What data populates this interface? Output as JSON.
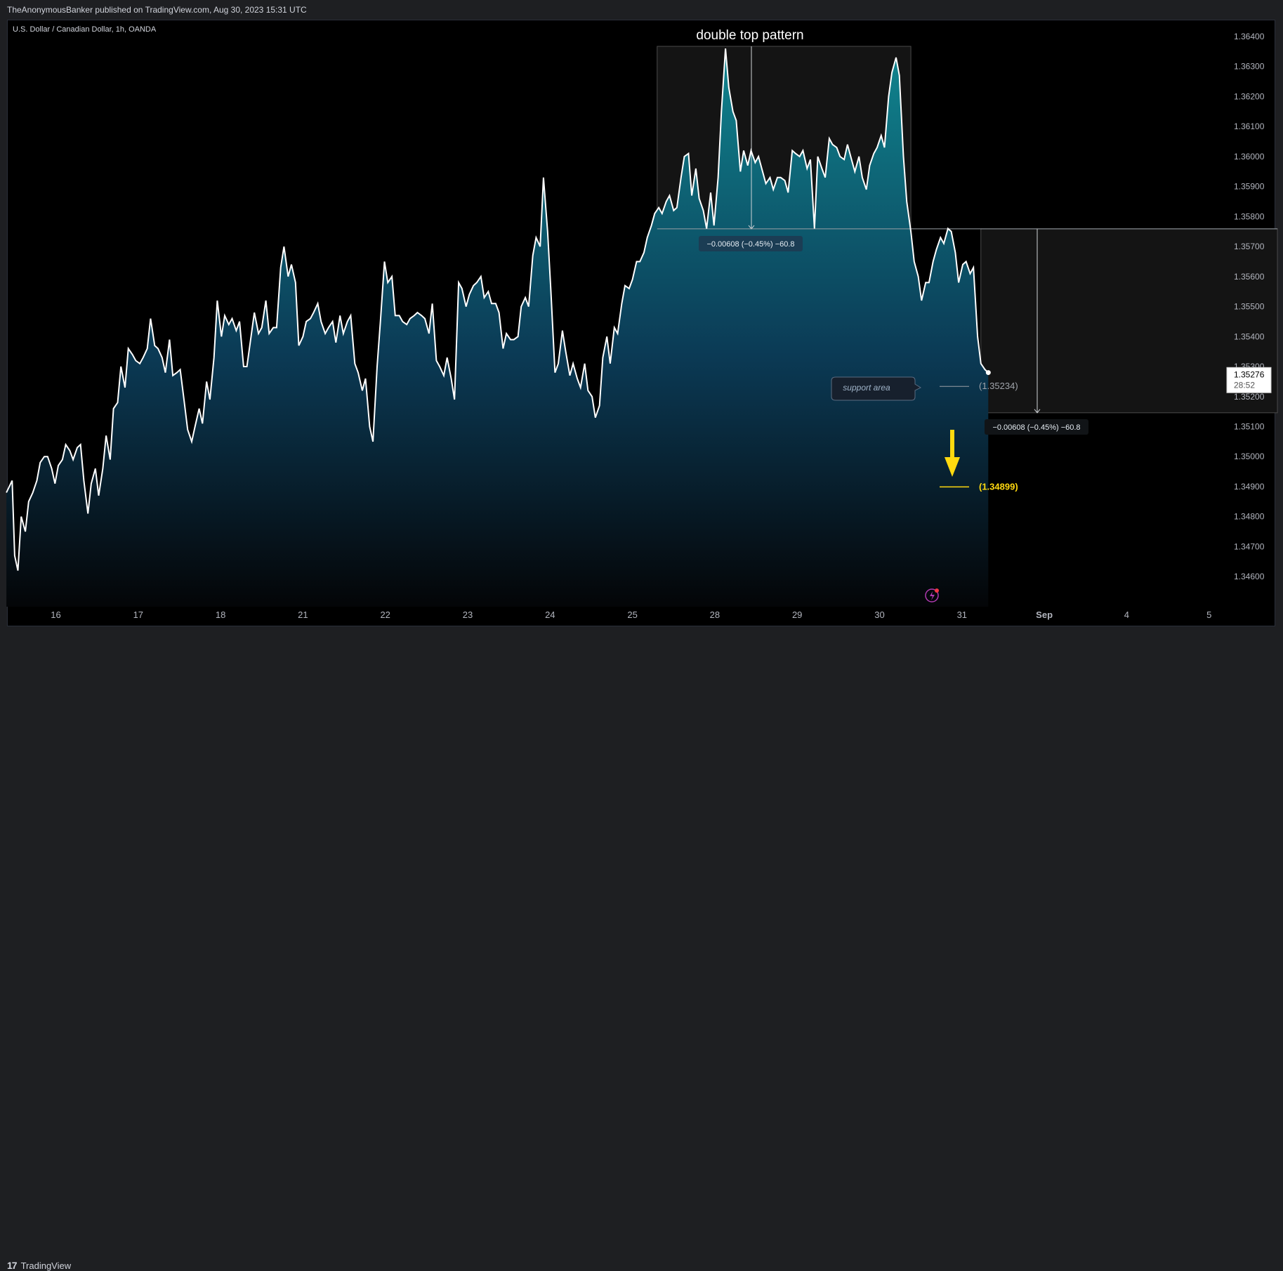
{
  "header": {
    "published": "TheAnonymousBanker published on TradingView.com, Aug 30, 2023 15:31 UTC"
  },
  "footer": {
    "brand": "TradingView"
  },
  "chart_data": {
    "type": "area",
    "symbol_label": "U.S. Dollar / Canadian Dollar, 1h, OANDA",
    "title": "double top pattern",
    "ylim": [
      1.3455,
      1.3645
    ],
    "y_ticks": [
      "1.36400",
      "1.36300",
      "1.36200",
      "1.36100",
      "1.36000",
      "1.35900",
      "1.35800",
      "1.35700",
      "1.35600",
      "1.35500",
      "1.35400",
      "1.35200",
      "1.35100",
      "1.35000",
      "1.34900",
      "1.34800",
      "1.34700",
      "1.34600"
    ],
    "x_ticks": [
      {
        "label": "16",
        "pos": 1
      },
      {
        "label": "17",
        "pos": 2
      },
      {
        "label": "18",
        "pos": 3
      },
      {
        "label": "21",
        "pos": 4
      },
      {
        "label": "22",
        "pos": 5
      },
      {
        "label": "23",
        "pos": 6
      },
      {
        "label": "24",
        "pos": 7
      },
      {
        "label": "25",
        "pos": 8
      },
      {
        "label": "28",
        "pos": 9
      },
      {
        "label": "29",
        "pos": 10
      },
      {
        "label": "30",
        "pos": 11
      },
      {
        "label": "31",
        "pos": 12
      },
      {
        "label": "Sep",
        "pos": 13
      },
      {
        "label": "4",
        "pos": 14
      },
      {
        "label": "5",
        "pos": 15
      }
    ],
    "series": [
      {
        "points": [
          [
            0.4,
            1.3488
          ],
          [
            0.47,
            1.3492
          ],
          [
            0.5,
            1.3467
          ],
          [
            0.54,
            1.3462
          ],
          [
            0.58,
            1.348
          ],
          [
            0.63,
            1.3475
          ],
          [
            0.67,
            1.3485
          ],
          [
            0.72,
            1.3488
          ],
          [
            0.77,
            1.3492
          ],
          [
            0.81,
            1.3498
          ],
          [
            0.86,
            1.35
          ],
          [
            0.9,
            1.35
          ],
          [
            0.95,
            1.3496
          ],
          [
            0.99,
            1.3491
          ],
          [
            1.03,
            1.3497
          ],
          [
            1.08,
            1.3499
          ],
          [
            1.12,
            1.3504
          ],
          [
            1.17,
            1.3502
          ],
          [
            1.21,
            1.3499
          ],
          [
            1.26,
            1.3503
          ],
          [
            1.3,
            1.3504
          ],
          [
            1.34,
            1.3492
          ],
          [
            1.39,
            1.3481
          ],
          [
            1.43,
            1.3491
          ],
          [
            1.48,
            1.3496
          ],
          [
            1.52,
            1.3487
          ],
          [
            1.57,
            1.3496
          ],
          [
            1.61,
            1.3507
          ],
          [
            1.66,
            1.3499
          ],
          [
            1.7,
            1.3516
          ],
          [
            1.75,
            1.3518
          ],
          [
            1.79,
            1.353
          ],
          [
            1.84,
            1.3523
          ],
          [
            1.88,
            1.3536
          ],
          [
            1.93,
            1.3534
          ],
          [
            1.97,
            1.3532
          ],
          [
            2.02,
            1.3531
          ],
          [
            2.06,
            1.3533
          ],
          [
            2.11,
            1.3536
          ],
          [
            2.15,
            1.3546
          ],
          [
            2.2,
            1.3537
          ],
          [
            2.24,
            1.3536
          ],
          [
            2.29,
            1.3533
          ],
          [
            2.33,
            1.3528
          ],
          [
            2.38,
            1.3539
          ],
          [
            2.42,
            1.3527
          ],
          [
            2.47,
            1.3528
          ],
          [
            2.51,
            1.3529
          ],
          [
            2.56,
            1.3518
          ],
          [
            2.6,
            1.3509
          ],
          [
            2.65,
            1.3505
          ],
          [
            2.69,
            1.351
          ],
          [
            2.74,
            1.3516
          ],
          [
            2.78,
            1.3511
          ],
          [
            2.83,
            1.3525
          ],
          [
            2.87,
            1.3519
          ],
          [
            2.92,
            1.3533
          ],
          [
            2.96,
            1.3552
          ],
          [
            3.01,
            1.354
          ],
          [
            3.05,
            1.3547
          ],
          [
            3.1,
            1.3544
          ],
          [
            3.14,
            1.3546
          ],
          [
            3.19,
            1.3542
          ],
          [
            3.23,
            1.3545
          ],
          [
            3.28,
            1.353
          ],
          [
            3.32,
            1.353
          ],
          [
            3.37,
            1.354
          ],
          [
            3.41,
            1.3548
          ],
          [
            3.46,
            1.3541
          ],
          [
            3.5,
            1.3543
          ],
          [
            3.55,
            1.3552
          ],
          [
            3.59,
            1.3541
          ],
          [
            3.64,
            1.3543
          ],
          [
            3.68,
            1.3543
          ],
          [
            3.73,
            1.3563
          ],
          [
            3.77,
            1.357
          ],
          [
            3.82,
            1.356
          ],
          [
            3.86,
            1.3564
          ],
          [
            3.91,
            1.3558
          ],
          [
            3.95,
            1.3537
          ],
          [
            4.0,
            1.354
          ],
          [
            4.04,
            1.3545
          ],
          [
            4.09,
            1.3546
          ],
          [
            4.13,
            1.3548
          ],
          [
            4.18,
            1.3551
          ],
          [
            4.22,
            1.3545
          ],
          [
            4.27,
            1.3541
          ],
          [
            4.31,
            1.3543
          ],
          [
            4.36,
            1.3545
          ],
          [
            4.4,
            1.3538
          ],
          [
            4.45,
            1.3547
          ],
          [
            4.49,
            1.3541
          ],
          [
            4.54,
            1.3545
          ],
          [
            4.58,
            1.3547
          ],
          [
            4.63,
            1.3531
          ],
          [
            4.67,
            1.3528
          ],
          [
            4.72,
            1.3522
          ],
          [
            4.76,
            1.3526
          ],
          [
            4.81,
            1.351
          ],
          [
            4.85,
            1.3505
          ],
          [
            4.9,
            1.353
          ],
          [
            4.94,
            1.3545
          ],
          [
            4.99,
            1.3565
          ],
          [
            5.03,
            1.3558
          ],
          [
            5.08,
            1.356
          ],
          [
            5.12,
            1.3547
          ],
          [
            5.17,
            1.3547
          ],
          [
            5.21,
            1.3545
          ],
          [
            5.26,
            1.3544
          ],
          [
            5.3,
            1.3546
          ],
          [
            5.35,
            1.3547
          ],
          [
            5.39,
            1.3548
          ],
          [
            5.44,
            1.3547
          ],
          [
            5.48,
            1.3546
          ],
          [
            5.53,
            1.3541
          ],
          [
            5.57,
            1.3551
          ],
          [
            5.62,
            1.3532
          ],
          [
            5.66,
            1.353
          ],
          [
            5.71,
            1.3527
          ],
          [
            5.75,
            1.3533
          ],
          [
            5.8,
            1.3526
          ],
          [
            5.84,
            1.3519
          ],
          [
            5.89,
            1.3558
          ],
          [
            5.93,
            1.3556
          ],
          [
            5.98,
            1.355
          ],
          [
            6.02,
            1.3554
          ],
          [
            6.07,
            1.3557
          ],
          [
            6.11,
            1.3558
          ],
          [
            6.16,
            1.356
          ],
          [
            6.2,
            1.3553
          ],
          [
            6.25,
            1.3555
          ],
          [
            6.29,
            1.3551
          ],
          [
            6.34,
            1.3551
          ],
          [
            6.38,
            1.3548
          ],
          [
            6.43,
            1.3536
          ],
          [
            6.47,
            1.3541
          ],
          [
            6.52,
            1.3539
          ],
          [
            6.56,
            1.3539
          ],
          [
            6.61,
            1.354
          ],
          [
            6.65,
            1.355
          ],
          [
            6.7,
            1.3553
          ],
          [
            6.74,
            1.355
          ],
          [
            6.79,
            1.3567
          ],
          [
            6.83,
            1.3573
          ],
          [
            6.88,
            1.357
          ],
          [
            6.92,
            1.3593
          ],
          [
            6.97,
            1.3575
          ],
          [
            7.01,
            1.3555
          ],
          [
            7.06,
            1.3528
          ],
          [
            7.1,
            1.3531
          ],
          [
            7.15,
            1.3542
          ],
          [
            7.19,
            1.3535
          ],
          [
            7.24,
            1.3527
          ],
          [
            7.28,
            1.3531
          ],
          [
            7.33,
            1.3526
          ],
          [
            7.37,
            1.3523
          ],
          [
            7.42,
            1.3531
          ],
          [
            7.46,
            1.3522
          ],
          [
            7.51,
            1.352
          ],
          [
            7.55,
            1.3513
          ],
          [
            7.6,
            1.3517
          ],
          [
            7.64,
            1.3533
          ],
          [
            7.69,
            1.354
          ],
          [
            7.73,
            1.3531
          ],
          [
            7.78,
            1.3543
          ],
          [
            7.82,
            1.3541
          ],
          [
            7.87,
            1.3551
          ],
          [
            7.91,
            1.3557
          ],
          [
            7.96,
            1.3556
          ],
          [
            8.0,
            1.3559
          ],
          [
            8.05,
            1.3565
          ],
          [
            8.09,
            1.3565
          ],
          [
            8.14,
            1.3568
          ],
          [
            8.18,
            1.3573
          ],
          [
            8.23,
            1.3577
          ],
          [
            8.27,
            1.3581
          ],
          [
            8.32,
            1.3583
          ],
          [
            8.36,
            1.3581
          ],
          [
            8.41,
            1.3585
          ],
          [
            8.45,
            1.3587
          ],
          [
            8.5,
            1.3582
          ],
          [
            8.54,
            1.3583
          ],
          [
            8.59,
            1.3593
          ],
          [
            8.63,
            1.36
          ],
          [
            8.68,
            1.3601
          ],
          [
            8.72,
            1.3587
          ],
          [
            8.77,
            1.3596
          ],
          [
            8.81,
            1.3586
          ],
          [
            8.86,
            1.3582
          ],
          [
            8.9,
            1.3576
          ],
          [
            8.95,
            1.3588
          ],
          [
            8.99,
            1.3577
          ],
          [
            9.04,
            1.3593
          ],
          [
            9.08,
            1.3615
          ],
          [
            9.13,
            1.3636
          ],
          [
            9.17,
            1.3623
          ],
          [
            9.22,
            1.3615
          ],
          [
            9.26,
            1.3612
          ],
          [
            9.31,
            1.3595
          ],
          [
            9.35,
            1.3602
          ],
          [
            9.4,
            1.3597
          ],
          [
            9.44,
            1.3602
          ],
          [
            9.49,
            1.3598
          ],
          [
            9.53,
            1.36
          ],
          [
            9.58,
            1.3595
          ],
          [
            9.62,
            1.3591
          ],
          [
            9.67,
            1.3593
          ],
          [
            9.71,
            1.3589
          ],
          [
            9.76,
            1.3593
          ],
          [
            9.8,
            1.3593
          ],
          [
            9.85,
            1.3592
          ],
          [
            9.89,
            1.3588
          ],
          [
            9.94,
            1.3602
          ],
          [
            9.98,
            1.3601
          ],
          [
            10.03,
            1.36
          ],
          [
            10.07,
            1.3602
          ],
          [
            10.12,
            1.3596
          ],
          [
            10.16,
            1.3599
          ],
          [
            10.21,
            1.3576
          ],
          [
            10.25,
            1.36
          ],
          [
            10.3,
            1.3596
          ],
          [
            10.34,
            1.3593
          ],
          [
            10.39,
            1.3606
          ],
          [
            10.43,
            1.3604
          ],
          [
            10.48,
            1.3603
          ],
          [
            10.52,
            1.36
          ],
          [
            10.57,
            1.3599
          ],
          [
            10.61,
            1.3604
          ],
          [
            10.66,
            1.3599
          ],
          [
            10.7,
            1.3595
          ],
          [
            10.75,
            1.36
          ],
          [
            10.79,
            1.3593
          ],
          [
            10.84,
            1.3589
          ],
          [
            10.88,
            1.3597
          ],
          [
            10.93,
            1.3601
          ],
          [
            10.97,
            1.3603
          ],
          [
            11.02,
            1.3607
          ],
          [
            11.06,
            1.3603
          ],
          [
            11.11,
            1.362
          ],
          [
            11.15,
            1.3628
          ],
          [
            11.2,
            1.3633
          ],
          [
            11.24,
            1.3627
          ],
          [
            11.29,
            1.36
          ],
          [
            11.33,
            1.3585
          ],
          [
            11.38,
            1.3575
          ],
          [
            11.42,
            1.3565
          ],
          [
            11.47,
            1.356
          ],
          [
            11.51,
            1.3552
          ],
          [
            11.56,
            1.3558
          ],
          [
            11.6,
            1.3558
          ],
          [
            11.65,
            1.3565
          ],
          [
            11.69,
            1.3569
          ],
          [
            11.74,
            1.3573
          ],
          [
            11.78,
            1.3571
          ],
          [
            11.83,
            1.3576
          ],
          [
            11.87,
            1.3575
          ],
          [
            11.92,
            1.3568
          ],
          [
            11.96,
            1.3558
          ],
          [
            12.01,
            1.3564
          ],
          [
            12.05,
            1.3565
          ],
          [
            12.1,
            1.3561
          ],
          [
            12.14,
            1.3563
          ],
          [
            12.19,
            1.354
          ],
          [
            12.23,
            1.3531
          ],
          [
            12.28,
            1.3529
          ],
          [
            12.32,
            1.3528
          ]
        ]
      }
    ],
    "last_price": "1.35276",
    "countdown": "28:52",
    "hidden_tick": "1.35300",
    "annotations": {
      "measure_top": "−0.00608 (−0.45%) −60.8",
      "measure_bottom": "−0.00608 (−0.45%) −60.8",
      "support_label": "support area",
      "support_level": "(1.35234)",
      "target_level": "(1.34899)",
      "neckline": 1.35759,
      "support_value": 1.35234,
      "target_value": 1.34899,
      "double_top_window": [
        8.3,
        11.38
      ],
      "target_window": [
        12.23,
        15.83
      ]
    }
  },
  "colors": {
    "line": "#ffffff",
    "area_top": "#10858f",
    "area_bottom": "#000000",
    "target": "#ffd90f",
    "measure_top_bg": "#1b3d54",
    "axis_text": "#b2b5be"
  }
}
